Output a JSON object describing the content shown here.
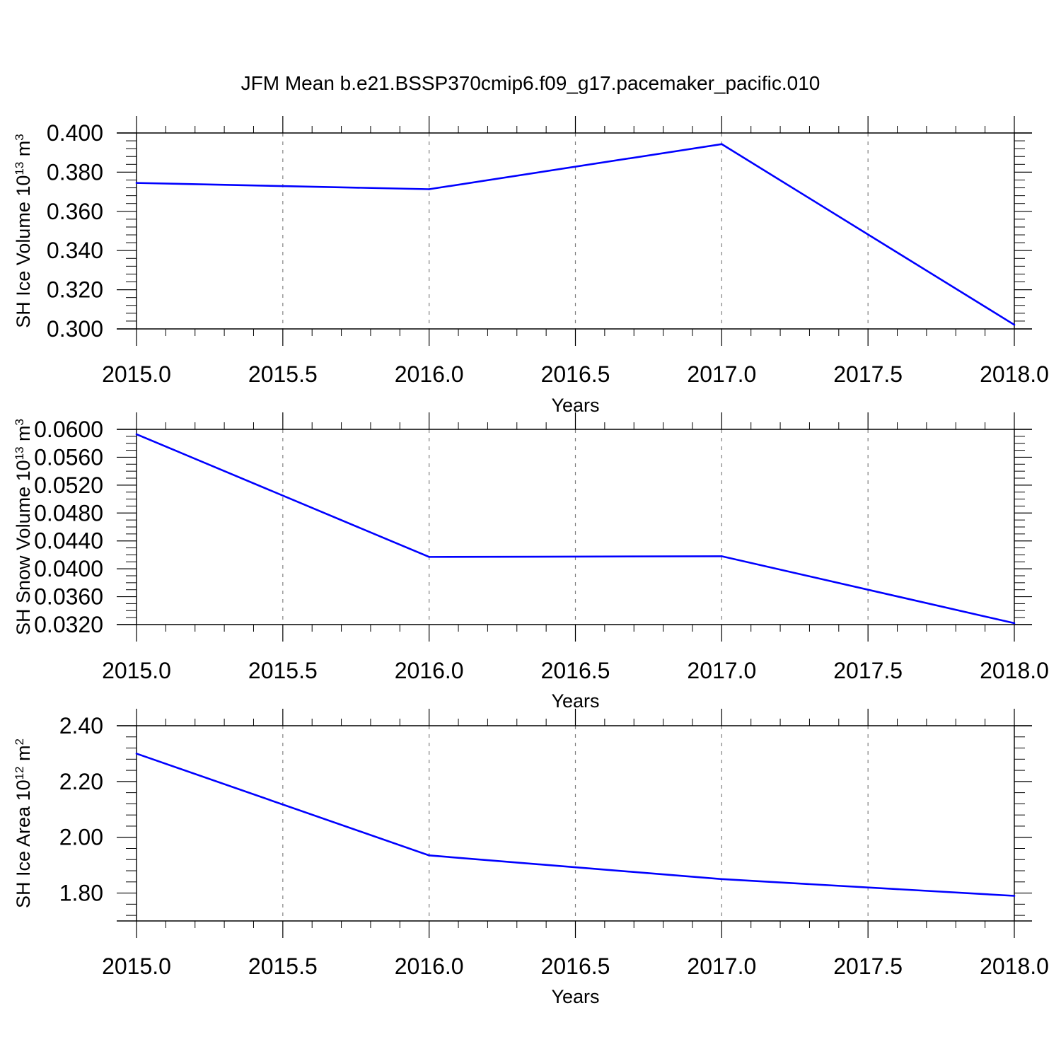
{
  "title": "JFM Mean b.e21.BSSP370cmip6.f09_g17.pacemaker_pacific.010",
  "colors": {
    "line": "#0000ff",
    "axis": "#000000",
    "grid": "#808080",
    "background": "#ffffff"
  },
  "chart_data": [
    {
      "type": "line",
      "xlabel": "Years",
      "ylabel": {
        "base": "SH Ice Volume 10",
        "exp1": "13",
        "unit": " m",
        "exp2": "3"
      },
      "xlim": [
        2015.0,
        2018.0
      ],
      "ylim": [
        0.3,
        0.4
      ],
      "xticks": [
        "2015.0",
        "2015.5",
        "2016.0",
        "2016.5",
        "2017.0",
        "2017.5",
        "2018.0"
      ],
      "yticks": [
        "0.300",
        "0.320",
        "0.340",
        "0.360",
        "0.380",
        "0.400"
      ],
      "grid": "vertical dashed",
      "series": [
        {
          "x": [
            2015,
            2016,
            2017,
            2018
          ],
          "values": [
            0.3745,
            0.3713,
            0.3943,
            0.3021
          ]
        }
      ]
    },
    {
      "type": "line",
      "xlabel": "Years",
      "ylabel": {
        "base": "SH Snow Volume 10",
        "exp1": "13",
        "unit": " m",
        "exp2": "3"
      },
      "xlim": [
        2015.0,
        2018.0
      ],
      "ylim": [
        0.032,
        0.06
      ],
      "xticks": [
        "2015.0",
        "2015.5",
        "2016.0",
        "2016.5",
        "2017.0",
        "2017.5",
        "2018.0"
      ],
      "yticks": [
        "0.0320",
        "0.0360",
        "0.0400",
        "0.0440",
        "0.0480",
        "0.0520",
        "0.0560",
        "0.0600"
      ],
      "grid": "vertical dashed",
      "series": [
        {
          "x": [
            2015,
            2016,
            2017,
            2018
          ],
          "values": [
            0.0593,
            0.0417,
            0.0418,
            0.0322
          ]
        }
      ]
    },
    {
      "type": "line",
      "xlabel": "Years",
      "ylabel": {
        "base": "SH Ice Area 10",
        "exp1": "12",
        "unit": " m",
        "exp2": "2"
      },
      "xlim": [
        2015.0,
        2018.0
      ],
      "ylim": [
        1.7,
        2.4
      ],
      "xticks": [
        "2015.0",
        "2015.5",
        "2016.0",
        "2016.5",
        "2017.0",
        "2017.5",
        "2018.0"
      ],
      "yticks": [
        "1.80",
        "2.00",
        "2.20",
        "2.40"
      ],
      "grid": "vertical dashed",
      "series": [
        {
          "x": [
            2015,
            2016,
            2017,
            2018
          ],
          "values": [
            2.3,
            1.935,
            1.85,
            1.79
          ]
        }
      ]
    }
  ]
}
